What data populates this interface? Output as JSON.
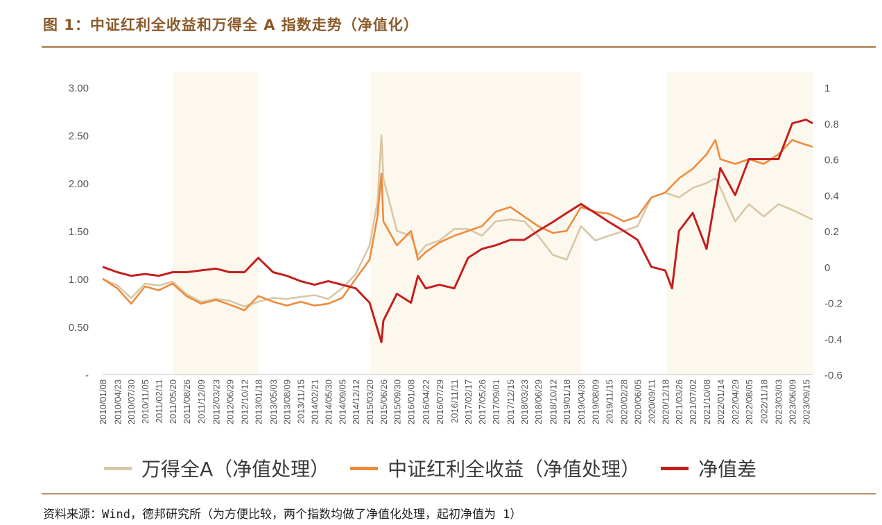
{
  "figure": {
    "title": "图 1：中证红利全收益和万得全 A 指数走势（净值化）",
    "source": "资料来源：Wind，德邦研究所（为方便比较，两个指数均做了净值化处理，起初净值为 1）"
  },
  "legend": [
    {
      "label": "万得全A（净值处理）",
      "color": "#D8C7A6"
    },
    {
      "label": "中证红利全收益（净值处理）",
      "color": "#EE8A3C"
    },
    {
      "label": "净值差",
      "color": "#C41E1E"
    }
  ],
  "chart_data": {
    "type": "line",
    "x_ticks": [
      "2010/01/08",
      "2010/04/23",
      "2010/07/30",
      "2010/11/05",
      "2011/02/11",
      "2011/05/20",
      "2011/08/26",
      "2011/12/09",
      "2012/03/23",
      "2012/06/29",
      "2012/10/12",
      "2013/01/18",
      "2013/05/03",
      "2013/08/09",
      "2013/11/15",
      "2014/02/21",
      "2014/05/30",
      "2014/09/05",
      "2014/12/12",
      "2015/03/20",
      "2015/06/26",
      "2015/09/30",
      "2016/01/08",
      "2016/04/22",
      "2016/07/29",
      "2016/11/11",
      "2017/02/17",
      "2017/05/26",
      "2017/09/01",
      "2017/12/15",
      "2018/03/23",
      "2018/06/29",
      "2018/10/12",
      "2019/01/18",
      "2019/04/30",
      "2019/08/09",
      "2019/11/15",
      "2020/02/28",
      "2020/06/05",
      "2020/09/11",
      "2020/12/18",
      "2021/03/26",
      "2021/07/02",
      "2021/10/08",
      "2022/01/14",
      "2022/04/29",
      "2022/08/05",
      "2022/11/18",
      "2023/03/03",
      "2023/06/09",
      "2023/09/15"
    ],
    "y_left": {
      "ticks": [
        "-",
        "0.50",
        "1.00",
        "1.50",
        "2.00",
        "2.50",
        "3.00"
      ],
      "range": [
        0,
        3
      ]
    },
    "y_right": {
      "ticks": [
        "-0.6",
        "-0.4",
        "-0.2",
        "0",
        "0.2",
        "0.4",
        "0.6",
        "0.8",
        "1"
      ],
      "range": [
        -0.6,
        1
      ]
    },
    "shaded_ranges": [
      [
        "2011/05/20",
        "2013/01/18"
      ],
      [
        "2015/03/20",
        "2019/04/30"
      ],
      [
        "2021/01/01",
        "2023/11/01"
      ]
    ],
    "series": [
      {
        "name": "万得全A（净值处理）",
        "axis": "left",
        "color": "#D8C7A6",
        "points": [
          [
            "2010/01/08",
            1.0
          ],
          [
            "2010/04/23",
            0.93
          ],
          [
            "2010/07/30",
            0.8
          ],
          [
            "2010/11/05",
            0.95
          ],
          [
            "2011/02/11",
            0.93
          ],
          [
            "2011/05/20",
            0.97
          ],
          [
            "2011/08/26",
            0.84
          ],
          [
            "2011/12/09",
            0.76
          ],
          [
            "2012/03/23",
            0.79
          ],
          [
            "2012/06/29",
            0.77
          ],
          [
            "2012/10/12",
            0.71
          ],
          [
            "2013/01/18",
            0.76
          ],
          [
            "2013/05/03",
            0.8
          ],
          [
            "2013/08/09",
            0.79
          ],
          [
            "2013/11/15",
            0.81
          ],
          [
            "2014/02/21",
            0.83
          ],
          [
            "2014/05/30",
            0.79
          ],
          [
            "2014/09/05",
            0.9
          ],
          [
            "2014/12/12",
            1.05
          ],
          [
            "2015/03/20",
            1.35
          ],
          [
            "2015/05/15",
            1.8
          ],
          [
            "2015/06/12",
            2.5
          ],
          [
            "2015/06/26",
            2.05
          ],
          [
            "2015/09/30",
            1.5
          ],
          [
            "2016/01/08",
            1.45
          ],
          [
            "2016/02/26",
            1.25
          ],
          [
            "2016/04/22",
            1.35
          ],
          [
            "2016/07/29",
            1.4
          ],
          [
            "2016/11/11",
            1.52
          ],
          [
            "2017/02/17",
            1.52
          ],
          [
            "2017/05/26",
            1.45
          ],
          [
            "2017/09/01",
            1.6
          ],
          [
            "2017/12/15",
            1.62
          ],
          [
            "2018/03/23",
            1.6
          ],
          [
            "2018/06/29",
            1.45
          ],
          [
            "2018/10/12",
            1.25
          ],
          [
            "2019/01/18",
            1.2
          ],
          [
            "2019/04/30",
            1.55
          ],
          [
            "2019/08/09",
            1.4
          ],
          [
            "2019/11/15",
            1.45
          ],
          [
            "2020/02/28",
            1.5
          ],
          [
            "2020/06/05",
            1.55
          ],
          [
            "2020/09/11",
            1.85
          ],
          [
            "2020/12/18",
            1.9
          ],
          [
            "2021/03/26",
            1.85
          ],
          [
            "2021/07/02",
            1.95
          ],
          [
            "2021/10/08",
            2.0
          ],
          [
            "2021/12/10",
            2.05
          ],
          [
            "2022/01/14",
            1.95
          ],
          [
            "2022/04/29",
            1.6
          ],
          [
            "2022/08/05",
            1.78
          ],
          [
            "2022/11/18",
            1.65
          ],
          [
            "2023/03/03",
            1.78
          ],
          [
            "2023/06/09",
            1.72
          ],
          [
            "2023/09/15",
            1.65
          ],
          [
            "2023/11/01",
            1.62
          ]
        ]
      },
      {
        "name": "中证红利全收益（净值处理）",
        "axis": "left",
        "color": "#EE8A3C",
        "points": [
          [
            "2010/01/08",
            1.0
          ],
          [
            "2010/04/23",
            0.9
          ],
          [
            "2010/07/30",
            0.74
          ],
          [
            "2010/11/05",
            0.92
          ],
          [
            "2011/02/11",
            0.88
          ],
          [
            "2011/05/20",
            0.95
          ],
          [
            "2011/08/26",
            0.82
          ],
          [
            "2011/12/09",
            0.74
          ],
          [
            "2012/03/23",
            0.78
          ],
          [
            "2012/06/29",
            0.73
          ],
          [
            "2012/10/12",
            0.67
          ],
          [
            "2013/01/18",
            0.82
          ],
          [
            "2013/05/03",
            0.76
          ],
          [
            "2013/08/09",
            0.72
          ],
          [
            "2013/11/15",
            0.76
          ],
          [
            "2014/02/21",
            0.72
          ],
          [
            "2014/05/30",
            0.74
          ],
          [
            "2014/09/05",
            0.8
          ],
          [
            "2014/12/12",
            1.0
          ],
          [
            "2015/03/20",
            1.2
          ],
          [
            "2015/05/15",
            1.65
          ],
          [
            "2015/06/12",
            2.1
          ],
          [
            "2015/06/26",
            1.6
          ],
          [
            "2015/09/30",
            1.35
          ],
          [
            "2016/01/08",
            1.5
          ],
          [
            "2016/02/26",
            1.2
          ],
          [
            "2016/04/22",
            1.28
          ],
          [
            "2016/07/29",
            1.38
          ],
          [
            "2016/11/11",
            1.45
          ],
          [
            "2017/02/17",
            1.5
          ],
          [
            "2017/05/26",
            1.55
          ],
          [
            "2017/09/01",
            1.7
          ],
          [
            "2017/12/15",
            1.75
          ],
          [
            "2018/03/23",
            1.65
          ],
          [
            "2018/06/29",
            1.55
          ],
          [
            "2018/10/12",
            1.48
          ],
          [
            "2019/01/18",
            1.5
          ],
          [
            "2019/04/30",
            1.75
          ],
          [
            "2019/08/09",
            1.7
          ],
          [
            "2019/11/15",
            1.68
          ],
          [
            "2020/02/28",
            1.6
          ],
          [
            "2020/06/05",
            1.65
          ],
          [
            "2020/09/11",
            1.85
          ],
          [
            "2020/12/18",
            1.9
          ],
          [
            "2021/03/26",
            2.05
          ],
          [
            "2021/07/02",
            2.15
          ],
          [
            "2021/10/08",
            2.3
          ],
          [
            "2021/12/10",
            2.45
          ],
          [
            "2022/01/14",
            2.25
          ],
          [
            "2022/04/29",
            2.2
          ],
          [
            "2022/08/05",
            2.25
          ],
          [
            "2022/11/18",
            2.2
          ],
          [
            "2023/03/03",
            2.3
          ],
          [
            "2023/06/09",
            2.45
          ],
          [
            "2023/09/15",
            2.4
          ],
          [
            "2023/11/01",
            2.38
          ]
        ]
      },
      {
        "name": "净值差",
        "axis": "right",
        "color": "#C41E1E",
        "points": [
          [
            "2010/01/08",
            0.0
          ],
          [
            "2010/04/23",
            -0.03
          ],
          [
            "2010/07/30",
            -0.05
          ],
          [
            "2010/11/05",
            -0.04
          ],
          [
            "2011/02/11",
            -0.05
          ],
          [
            "2011/05/20",
            -0.03
          ],
          [
            "2011/08/26",
            -0.03
          ],
          [
            "2011/12/09",
            -0.02
          ],
          [
            "2012/03/23",
            -0.01
          ],
          [
            "2012/06/29",
            -0.03
          ],
          [
            "2012/10/12",
            -0.03
          ],
          [
            "2013/01/18",
            0.05
          ],
          [
            "2013/05/03",
            -0.03
          ],
          [
            "2013/08/09",
            -0.05
          ],
          [
            "2013/11/15",
            -0.08
          ],
          [
            "2014/02/21",
            -0.1
          ],
          [
            "2014/05/30",
            -0.08
          ],
          [
            "2014/09/05",
            -0.1
          ],
          [
            "2014/12/12",
            -0.12
          ],
          [
            "2015/03/20",
            -0.2
          ],
          [
            "2015/06/12",
            -0.42
          ],
          [
            "2015/06/26",
            -0.3
          ],
          [
            "2015/09/30",
            -0.15
          ],
          [
            "2016/01/08",
            -0.2
          ],
          [
            "2016/02/26",
            -0.05
          ],
          [
            "2016/04/22",
            -0.12
          ],
          [
            "2016/07/29",
            -0.1
          ],
          [
            "2016/11/11",
            -0.12
          ],
          [
            "2017/02/17",
            0.05
          ],
          [
            "2017/05/26",
            0.1
          ],
          [
            "2017/09/01",
            0.12
          ],
          [
            "2017/12/15",
            0.15
          ],
          [
            "2018/03/23",
            0.15
          ],
          [
            "2018/06/29",
            0.2
          ],
          [
            "2018/10/12",
            0.25
          ],
          [
            "2019/01/18",
            0.3
          ],
          [
            "2019/04/30",
            0.35
          ],
          [
            "2019/08/09",
            0.3
          ],
          [
            "2019/11/15",
            0.25
          ],
          [
            "2020/02/28",
            0.2
          ],
          [
            "2020/06/05",
            0.15
          ],
          [
            "2020/09/11",
            0.0
          ],
          [
            "2020/12/18",
            -0.02
          ],
          [
            "2021/02/05",
            -0.12
          ],
          [
            "2021/03/26",
            0.2
          ],
          [
            "2021/07/02",
            0.3
          ],
          [
            "2021/10/08",
            0.1
          ],
          [
            "2022/01/14",
            0.55
          ],
          [
            "2022/04/29",
            0.4
          ],
          [
            "2022/08/05",
            0.6
          ],
          [
            "2022/11/18",
            0.6
          ],
          [
            "2023/03/03",
            0.6
          ],
          [
            "2023/06/09",
            0.8
          ],
          [
            "2023/09/15",
            0.82
          ],
          [
            "2023/11/01",
            0.8
          ]
        ]
      }
    ]
  }
}
